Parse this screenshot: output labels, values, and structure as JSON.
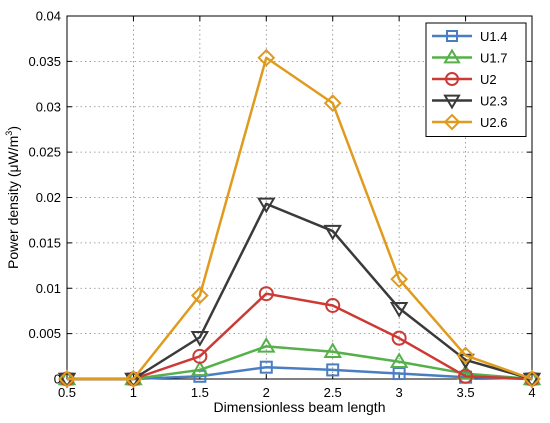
{
  "chart_data": {
    "type": "line",
    "xlabel": "Dimensionless beam length",
    "ylabel_main": "Power density (μW/m",
    "ylabel_sup": "3",
    "ylabel_close": ")",
    "xlim": [
      0.5,
      4
    ],
    "ylim": [
      0,
      0.04
    ],
    "xticks": [
      "0.5",
      "1",
      "1.5",
      "2",
      "2.5",
      "3",
      "3.5",
      "4"
    ],
    "yticks": [
      "0",
      "0.005",
      "0.01",
      "0.015",
      "0.02",
      "0.025",
      "0.03",
      "0.035",
      "0.04"
    ],
    "grid": true,
    "legend_position": "top-right",
    "x": [
      0.5,
      1,
      1.5,
      2,
      2.5,
      3,
      3.5,
      4
    ],
    "series": [
      {
        "name": "U1.4",
        "color": "#4a7ec2",
        "marker": "square",
        "values": [
          0,
          0,
          0.0003,
          0.0013,
          0.001,
          0.0006,
          0.0002,
          0
        ]
      },
      {
        "name": "U1.7",
        "color": "#55b04a",
        "marker": "triangle-up",
        "values": [
          0,
          0,
          0.001,
          0.0036,
          0.003,
          0.0019,
          0.0006,
          0
        ]
      },
      {
        "name": "U2",
        "color": "#cc3a35",
        "marker": "circle",
        "values": [
          0,
          0,
          0.0025,
          0.0094,
          0.0081,
          0.0045,
          0.0003,
          0
        ]
      },
      {
        "name": "U2.3",
        "color": "#3a3a3a",
        "marker": "triangle-down",
        "values": [
          0,
          0,
          0.0046,
          0.0193,
          0.0163,
          0.0078,
          0.0021,
          0
        ]
      },
      {
        "name": "U2.6",
        "color": "#e09b1e",
        "marker": "diamond",
        "values": [
          0,
          0,
          0.0092,
          0.0354,
          0.0304,
          0.011,
          0.0026,
          0
        ]
      }
    ]
  }
}
